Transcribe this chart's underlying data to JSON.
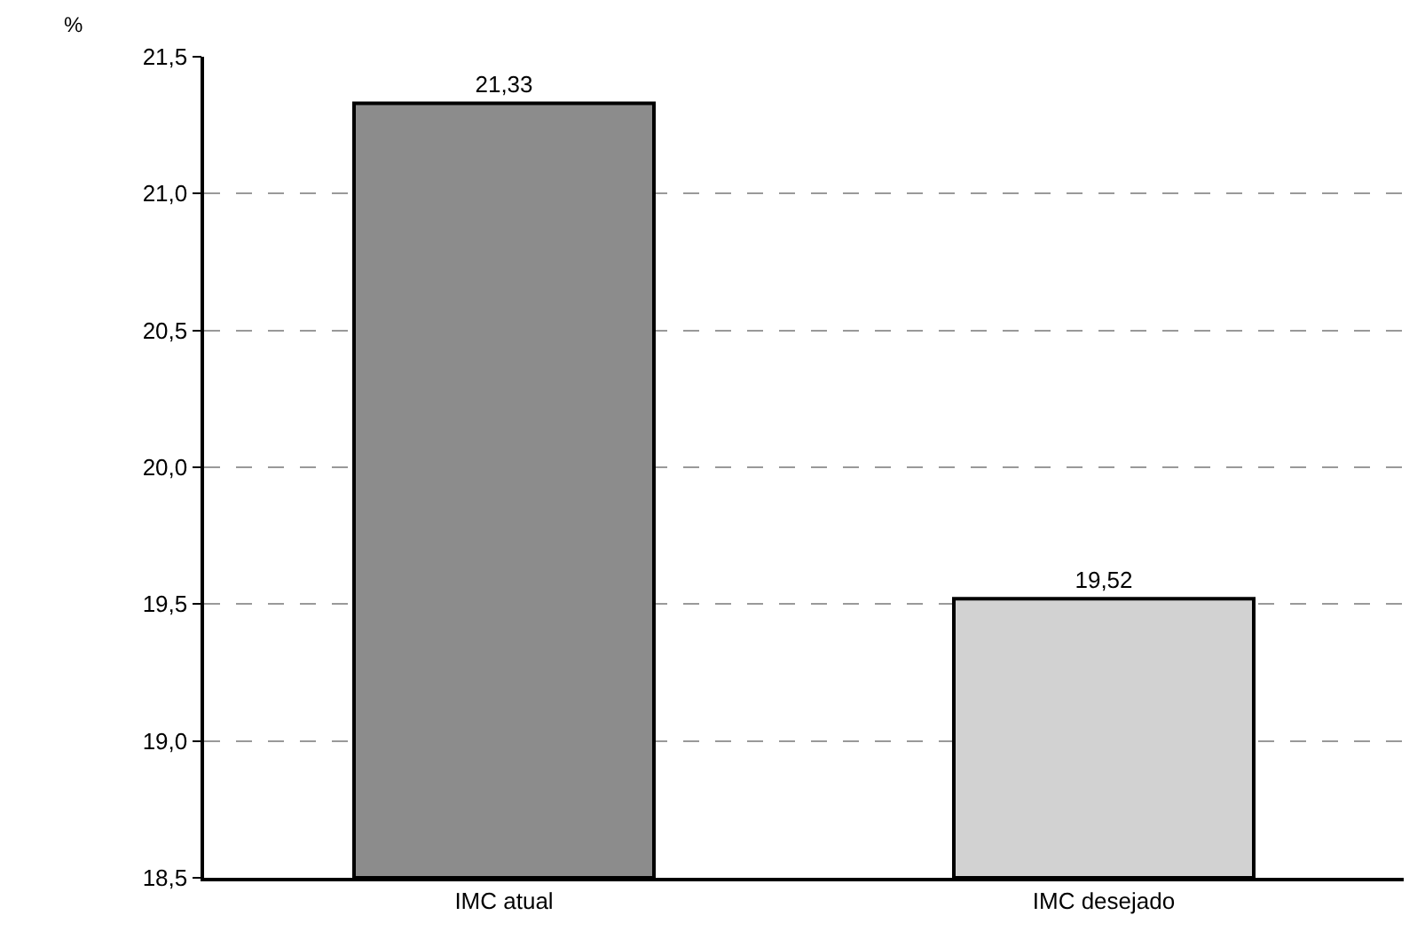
{
  "chart_data": {
    "type": "bar",
    "ylabel": "%",
    "categories": [
      "IMC atual",
      "IMC desejado"
    ],
    "values": [
      21.33,
      19.52
    ],
    "colors": [
      "#8c8c8c",
      "#d2d2d2"
    ],
    "value_labels": [
      "21,33",
      "19,52"
    ],
    "ylim": [
      18.5,
      21.5
    ],
    "yticks": [
      {
        "value": 18.5,
        "label": "18,5"
      },
      {
        "value": 19.0,
        "label": "19,0"
      },
      {
        "value": 19.5,
        "label": "19,5"
      },
      {
        "value": 20.0,
        "label": "20,0"
      },
      {
        "value": 20.5,
        "label": "20,5"
      },
      {
        "value": 21.0,
        "label": "21,0"
      },
      {
        "value": 21.5,
        "label": "21,5"
      }
    ],
    "grid": "y"
  }
}
